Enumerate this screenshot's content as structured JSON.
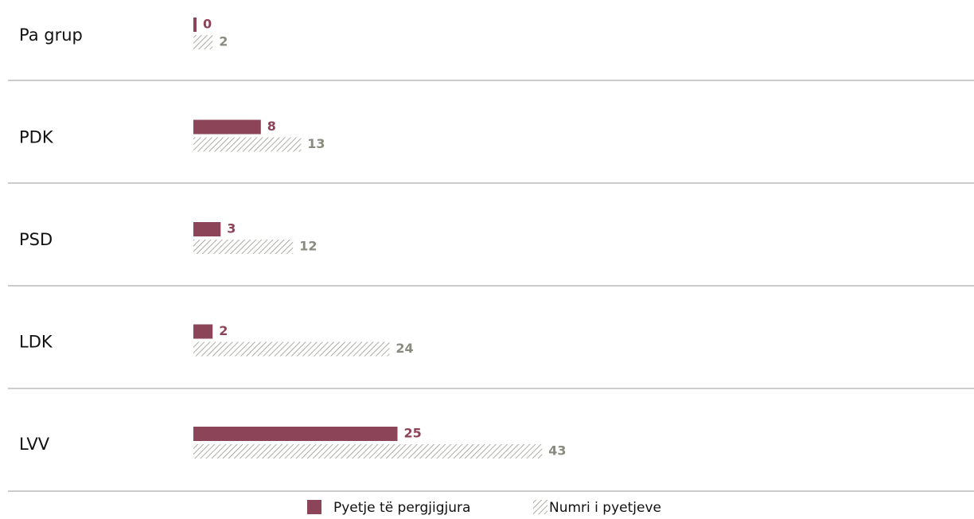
{
  "chart_data": {
    "type": "bar",
    "orientation": "horizontal",
    "categories": [
      "Pa grup",
      "PDK",
      "PSD",
      "LDK",
      "LVV"
    ],
    "series": [
      {
        "name": "Pyetje të pergjigjura",
        "color": "#8b4458",
        "values": [
          0,
          8,
          3,
          2,
          25
        ]
      },
      {
        "name": "Numri i pyetjeve",
        "color": "#8a8a80",
        "pattern": "hatch",
        "values": [
          2,
          13,
          12,
          24,
          43
        ]
      }
    ]
  }
}
